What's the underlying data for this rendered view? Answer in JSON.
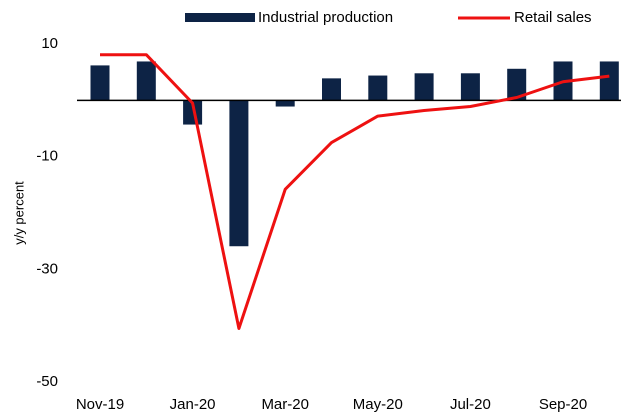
{
  "chart_data": {
    "type": "bar-line",
    "y_label": "y/y percent",
    "categories": [
      "Nov-19",
      null,
      "Jan-20",
      null,
      "Mar-20",
      null,
      "May-20",
      null,
      "Jul-20",
      null,
      "Sep-20",
      null
    ],
    "series": [
      {
        "name": "Industrial production",
        "type": "bar",
        "color": "#0d2345",
        "values": [
          6.2,
          6.9,
          -4.3,
          -25.9,
          -1.1,
          3.9,
          4.4,
          4.8,
          4.8,
          5.6,
          6.9,
          6.9
        ]
      },
      {
        "name": "Retail sales",
        "type": "line",
        "color": "#ee1111",
        "values": [
          8.1,
          8.1,
          -0.5,
          -40.5,
          -15.8,
          -7.5,
          -2.8,
          -1.8,
          -1.1,
          0.5,
          3.3,
          4.3
        ]
      }
    ],
    "ylim": [
      -50,
      10
    ],
    "yticks": [
      10,
      -10,
      -30,
      -50
    ]
  }
}
